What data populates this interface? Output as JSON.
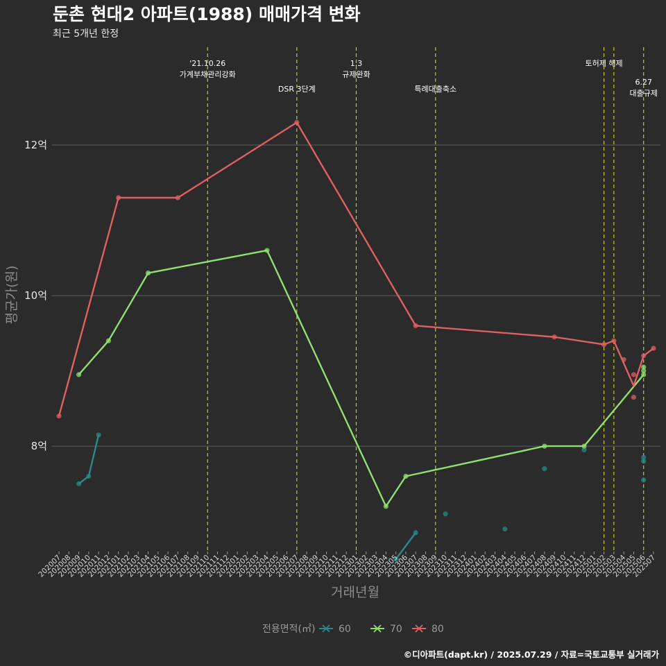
{
  "title": "둔촌 현대2 아파트(1988) 매매가격 변화",
  "subtitle": "최근 5개년 한정",
  "caption": "©디아파트(dapt.kr) / 2025.07.29 / 자료=국토교통부 실거래가",
  "colors": {
    "background": "#2b2b2b",
    "grid": "#5e5e5e",
    "event_line": "#c8c81e",
    "s60": "#2a8a8a",
    "s70": "#90e070",
    "s80": "#e06060"
  },
  "chart_data": {
    "type": "line",
    "xlabel": "거래년월",
    "ylabel": "평균가(원)",
    "ylim": [
      6.6,
      13.3
    ],
    "yticks": [
      {
        "value": 8,
        "label": "8억"
      },
      {
        "value": 10,
        "label": "10억"
      },
      {
        "value": 12,
        "label": "12억"
      }
    ],
    "x_ticks": [
      "202007",
      "202008",
      "202009",
      "202010",
      "202011",
      "202012",
      "202101",
      "202102",
      "202103",
      "202104",
      "202105",
      "202106",
      "202107",
      "202108",
      "202109",
      "202110",
      "202111",
      "202112",
      "202201",
      "202202",
      "202203",
      "202204",
      "202205",
      "202206",
      "202207",
      "202208",
      "202209",
      "202210",
      "202211",
      "202212",
      "202301",
      "202302",
      "202303",
      "202304",
      "202305",
      "202306",
      "202307",
      "202308",
      "202309",
      "202310",
      "202311",
      "202312",
      "202401",
      "202402",
      "202403",
      "202404",
      "202405",
      "202406",
      "202407",
      "202408",
      "202409",
      "202410",
      "202411",
      "202412",
      "202501",
      "202502",
      "202503",
      "202504",
      "202505",
      "202506",
      "202507"
    ],
    "legend": {
      "title": "전용면적(㎡)",
      "position": "bottom"
    },
    "series": [
      {
        "name": "60",
        "color": "#2a8a8a",
        "line": [
          [
            [
              "202009",
              7.5
            ],
            [
              "202010",
              7.6
            ],
            [
              "202011",
              8.15
            ]
          ],
          [
            [
              "202305",
              6.5
            ],
            [
              "202307",
              6.85
            ]
          ]
        ],
        "points": [
          [
            "202009",
            7.5
          ],
          [
            "202010",
            7.6
          ],
          [
            "202011",
            8.15
          ],
          [
            "202305",
            6.5
          ],
          [
            "202307",
            6.85
          ],
          [
            "202310",
            7.1
          ],
          [
            "202404",
            6.9
          ],
          [
            "202408",
            7.7
          ],
          [
            "202412",
            7.95
          ],
          [
            "202506",
            7.85
          ],
          [
            "202506",
            7.8
          ],
          [
            "202506",
            7.55
          ]
        ]
      },
      {
        "name": "70",
        "color": "#90e070",
        "line": [
          [
            [
              "202009",
              8.95
            ],
            [
              "202012",
              9.4
            ],
            [
              "202104",
              10.3
            ],
            [
              "202204",
              10.6
            ],
            [
              "202304",
              7.2
            ],
            [
              "202306",
              7.6
            ],
            [
              "202408",
              8.0
            ],
            [
              "202412",
              8.0
            ],
            [
              "202506",
              8.95
            ]
          ]
        ],
        "points": [
          [
            "202009",
            8.95
          ],
          [
            "202012",
            9.4
          ],
          [
            "202104",
            10.3
          ],
          [
            "202204",
            10.6
          ],
          [
            "202304",
            7.2
          ],
          [
            "202306",
            7.6
          ],
          [
            "202408",
            8.0
          ],
          [
            "202412",
            8.0
          ],
          [
            "202506",
            8.95
          ],
          [
            "202506",
            9.0
          ],
          [
            "202506",
            9.05
          ]
        ]
      },
      {
        "name": "80",
        "color": "#e06060",
        "line": [
          [
            [
              "202007",
              8.4
            ],
            [
              "202101",
              11.3
            ],
            [
              "202107",
              11.3
            ],
            [
              "202207",
              12.3
            ],
            [
              "202307",
              9.6
            ],
            [
              "202409",
              9.45
            ],
            [
              "202502",
              9.35
            ],
            [
              "202503",
              9.4
            ],
            [
              "202505",
              8.8
            ],
            [
              "202506",
              9.2
            ],
            [
              "202507",
              9.3
            ]
          ]
        ],
        "points": [
          [
            "202007",
            8.4
          ],
          [
            "202101",
            11.3
          ],
          [
            "202107",
            11.3
          ],
          [
            "202207",
            12.3
          ],
          [
            "202307",
            9.6
          ],
          [
            "202409",
            9.45
          ],
          [
            "202502",
            9.35
          ],
          [
            "202503",
            9.4
          ],
          [
            "202504",
            9.15
          ],
          [
            "202505",
            8.95
          ],
          [
            "202505",
            8.65
          ],
          [
            "202506",
            9.2
          ],
          [
            "202507",
            9.3
          ]
        ]
      }
    ],
    "events": [
      {
        "x": "202110",
        "lines": [
          "'21.10.26",
          "가계부채관리강화"
        ],
        "level": 0
      },
      {
        "x": "202207",
        "lines": [
          "DSR 3단계"
        ],
        "level": 1
      },
      {
        "x": "202301",
        "lines": [
          "1.3",
          "규제완화"
        ],
        "level": 0
      },
      {
        "x": "202309",
        "lines": [
          "특례대출축소"
        ],
        "level": 1
      },
      {
        "x": "202502",
        "lines": [
          "토허제 해제"
        ],
        "level": 0
      },
      {
        "x": "202503",
        "lines": [],
        "level": 0
      },
      {
        "x": "202506",
        "lines": [
          "6.27",
          "대출규제"
        ],
        "level": 1
      }
    ]
  }
}
